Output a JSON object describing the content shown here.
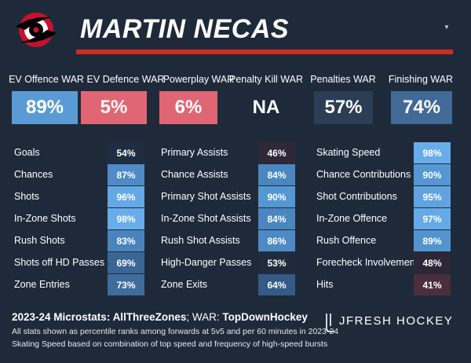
{
  "player": {
    "name": "MARTIN NECAS"
  },
  "war": [
    {
      "label": "EV Offence WAR",
      "value": "89%",
      "color": "#5b9bd5"
    },
    {
      "label": "EV Defence WAR",
      "value": "5%",
      "color": "#e06673"
    },
    {
      "label": "Powerplay WAR",
      "value": "6%",
      "color": "#e06673"
    },
    {
      "label": "Penalty Kill WAR",
      "value": "NA",
      "color": "transparent"
    },
    {
      "label": "Penalties WAR",
      "value": "57%",
      "color": "#2c3e55"
    },
    {
      "label": "Finishing WAR",
      "value": "74%",
      "color": "#416a97"
    }
  ],
  "columns": [
    [
      {
        "label": "Goals",
        "value": "54%",
        "color": "#1f2d40"
      },
      {
        "label": "Chances",
        "value": "87%",
        "color": "#4e8bc7"
      },
      {
        "label": "Shots",
        "value": "96%",
        "color": "#64a8e6"
      },
      {
        "label": "In-Zone Shots",
        "value": "98%",
        "color": "#68ade9"
      },
      {
        "label": "Rush Shots",
        "value": "83%",
        "color": "#4a84bd"
      },
      {
        "label": "Shots off HD Passes",
        "value": "69%",
        "color": "#3a6594"
      },
      {
        "label": "Zone Entries",
        "value": "73%",
        "color": "#3e6d9d"
      }
    ],
    [
      {
        "label": "Primary Assists",
        "value": "46%",
        "color": "#2f2838"
      },
      {
        "label": "Chance Assists",
        "value": "84%",
        "color": "#4a86c0"
      },
      {
        "label": "Primary Shot Assists",
        "value": "90%",
        "color": "#5597d2"
      },
      {
        "label": "In-Zone Shot Assists",
        "value": "84%",
        "color": "#4a86c0"
      },
      {
        "label": "Rush Shot Assists",
        "value": "86%",
        "color": "#4d8ac5"
      },
      {
        "label": "High-Danger Passes",
        "value": "53%",
        "color": "#1f2b3c"
      },
      {
        "label": "Zone Exits",
        "value": "64%",
        "color": "#345b86"
      }
    ],
    [
      {
        "label": "Skating Speed",
        "value": "98%",
        "color": "#68ade9"
      },
      {
        "label": "Chance Contributions",
        "value": "90%",
        "color": "#5597d2"
      },
      {
        "label": "Shot Contributions",
        "value": "95%",
        "color": "#60a3e0"
      },
      {
        "label": "In-Zone Offence",
        "value": "97%",
        "color": "#65aae7"
      },
      {
        "label": "Rush Offence",
        "value": "89%",
        "color": "#5394cf"
      },
      {
        "label": "Forecheck Involvement",
        "value": "48%",
        "color": "#2b2737"
      },
      {
        "label": "Hits",
        "value": "41%",
        "color": "#4a2e3c"
      }
    ]
  ],
  "footer": {
    "season": "2023-24 Microstats: ",
    "microstats_source": "AllThreeZones",
    "war_prefix": "; WAR: ",
    "war_source": "TopDownHockey",
    "note1": "All stats shown as percentile ranks among forwards at 5v5 and per 60 minutes in 2023-24",
    "note2": "Skating Speed based on combination of top speed and frequency of high-speed bursts",
    "brand": "JFRESH HOCKEY"
  }
}
